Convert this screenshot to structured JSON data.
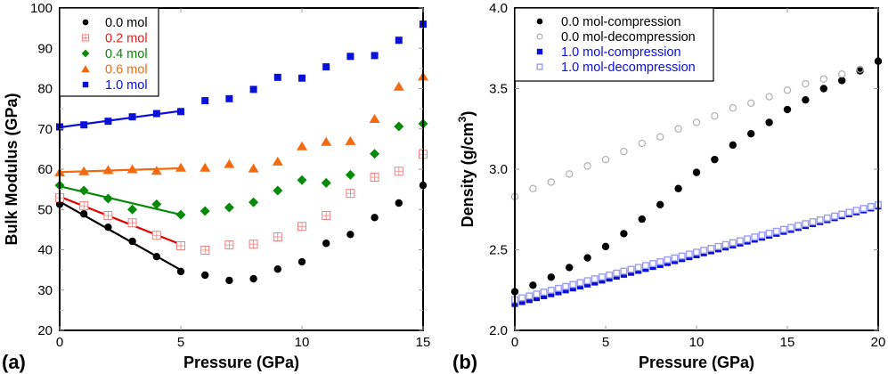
{
  "chart_data": [
    {
      "type": "scatter",
      "panel_label": "(a)",
      "title": "",
      "xlabel": "Pressure (GPa)",
      "ylabel": "Bulk Modulus (GPa)",
      "xlim": [
        0,
        15
      ],
      "ylim": [
        20,
        100
      ],
      "xticks": [
        "0",
        "5",
        "10",
        "15"
      ],
      "xtick_values": [
        0,
        5,
        10,
        15
      ],
      "yticks": [
        "20",
        "30",
        "40",
        "50",
        "60",
        "70",
        "80",
        "90",
        "100"
      ],
      "ytick_values": [
        20,
        30,
        40,
        50,
        60,
        70,
        80,
        90,
        100
      ],
      "grid": false,
      "legend_position": "top-left",
      "x": [
        0,
        1,
        2,
        3,
        4,
        5,
        6,
        7,
        8,
        9,
        10,
        11,
        12,
        13,
        14,
        15
      ],
      "series": [
        {
          "name": "0.0 mol",
          "marker": "circle",
          "color": "#000000",
          "fit_line": {
            "from": 0,
            "to": 5,
            "color": "#000000"
          },
          "values": [
            51.3,
            48.9,
            45.6,
            42.1,
            38.3,
            34.6,
            33.7,
            32.4,
            32.8,
            35.2,
            37.0,
            41.6,
            43.8,
            48.0,
            51.6,
            56.0
          ]
        },
        {
          "name": "0.2 mol",
          "marker": "square-grid",
          "color": "#f08080",
          "legend_color": "#e8201e",
          "fit_line": {
            "from": 0,
            "to": 5,
            "color": "#e00000"
          },
          "values": [
            52.9,
            50.9,
            48.5,
            46.7,
            43.6,
            41.0,
            39.9,
            41.2,
            41.4,
            43.2,
            45.8,
            48.5,
            54.0,
            58.0,
            59.5,
            63.7
          ]
        },
        {
          "name": "0.4 mol",
          "marker": "diamond",
          "color": "#078a07",
          "fit_line": {
            "from": 0,
            "to": 5,
            "color": "#078a07"
          },
          "values": [
            56.0,
            54.7,
            52.7,
            50.0,
            51.3,
            48.7,
            49.6,
            50.5,
            51.8,
            54.7,
            57.3,
            56.6,
            58.6,
            63.8,
            70.6,
            71.3
          ]
        },
        {
          "name": "0.6 mol",
          "marker": "triangle",
          "color": "#f26a10",
          "fit_line": {
            "from": 0,
            "to": 5,
            "color": "#f26a10"
          },
          "values": [
            59.2,
            59.5,
            59.8,
            60.0,
            59.6,
            60.4,
            60.4,
            61.3,
            60.2,
            61.9,
            65.7,
            66.8,
            67.0,
            72.5,
            80.5,
            83.0
          ]
        },
        {
          "name": "1.0 mol",
          "marker": "square",
          "color": "#0a10d8",
          "fit_line": {
            "from": 0,
            "to": 5,
            "color": "#0a10d8"
          },
          "values": [
            70.5,
            71.0,
            71.9,
            73.0,
            73.8,
            74.3,
            77.0,
            77.5,
            79.8,
            82.8,
            82.6,
            85.4,
            88.0,
            88.2,
            92.0,
            96.0
          ]
        }
      ]
    },
    {
      "type": "scatter",
      "panel_label": "(b)",
      "title": "",
      "xlabel": "Pressure (GPa)",
      "ylabel": "Density (g/cm",
      "ylabel_superscript": "3",
      "ylabel_suffix": ")",
      "xlim": [
        0,
        20
      ],
      "ylim": [
        2.0,
        4.0
      ],
      "xticks": [
        "0",
        "5",
        "10",
        "15",
        "20"
      ],
      "xtick_values": [
        0,
        5,
        10,
        15,
        20
      ],
      "yticks": [
        "2.0",
        "2.5",
        "3.0",
        "3.5",
        "4.0"
      ],
      "ytick_values": [
        2.0,
        2.5,
        3.0,
        3.5,
        4.0
      ],
      "grid": false,
      "legend_position": "top-left",
      "series": [
        {
          "name": "0.0 mol-compression",
          "marker": "circle",
          "color": "#000000",
          "x": [
            0,
            1,
            2,
            3,
            4,
            5,
            6,
            7,
            8,
            9,
            10,
            11,
            12,
            13,
            14,
            15,
            16,
            17,
            18,
            19,
            20
          ],
          "values": [
            2.24,
            2.28,
            2.33,
            2.39,
            2.45,
            2.52,
            2.6,
            2.69,
            2.78,
            2.88,
            2.98,
            3.06,
            3.15,
            3.22,
            3.29,
            3.37,
            3.43,
            3.5,
            3.55,
            3.61,
            3.67
          ]
        },
        {
          "name": "0.0 mol-decompression",
          "marker": "open-circle",
          "color": "#b0b0b0",
          "legend_color": "#000000",
          "x": [
            0,
            1,
            2,
            3,
            4,
            5,
            6,
            7,
            8,
            9,
            10,
            11,
            12,
            13,
            14,
            15,
            16,
            17,
            18,
            19
          ],
          "values": [
            2.83,
            2.88,
            2.92,
            2.97,
            3.02,
            3.06,
            3.11,
            3.16,
            3.2,
            3.25,
            3.29,
            3.33,
            3.38,
            3.41,
            3.45,
            3.49,
            3.53,
            3.56,
            3.59,
            3.62
          ]
        },
        {
          "name": "1.0 mol-compression",
          "marker": "square",
          "color": "#0a10d8",
          "x_range": [
            0,
            20
          ],
          "x_step": 0.4,
          "linear_fit": {
            "start": 2.165,
            "end": 2.77
          }
        },
        {
          "name": "1.0 mol-decompression",
          "marker": "open-square",
          "color": "#9a9cf0",
          "legend_color": "#0a10d8",
          "x_range": [
            0,
            20
          ],
          "x_step": 0.4,
          "linear_fit": {
            "start": 2.19,
            "end": 2.78
          }
        }
      ]
    }
  ]
}
